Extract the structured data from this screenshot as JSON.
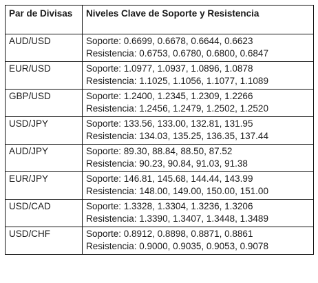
{
  "table": {
    "headers": {
      "pair": "Par de Divisas",
      "levels": "Niveles Clave de Soporte y Resistencia"
    },
    "rows": [
      {
        "pair": "AUD/USD",
        "support": "Soporte: 0.6699, 0.6678, 0.6644, 0.6623",
        "resistance": "Resistencia: 0.6753, 0.6780, 0.6800, 0.6847"
      },
      {
        "pair": "EUR/USD",
        "support": "Soporte: 1.0977, 1.0937, 1.0896, 1.0878",
        "resistance": "Resistencia: 1.1025, 1.1056, 1.1077, 1.1089"
      },
      {
        "pair": "GBP/USD",
        "support": "Soporte: 1.2400, 1.2345, 1.2309, 1.2266",
        "resistance": "Resistencia: 1.2456, 1.2479, 1.2502, 1.2520"
      },
      {
        "pair": "USD/JPY",
        "support": "Soporte: 133.56, 133.00, 132.81, 131.95",
        "resistance": "Resistencia: 134.03, 135.25, 136.35, 137.44"
      },
      {
        "pair": "AUD/JPY",
        "support": "Soporte: 89.30, 88.84, 88.50, 87.52",
        "resistance": "Resistencia: 90.23, 90.84, 91.03, 91.38"
      },
      {
        "pair": "EUR/JPY",
        "support": "Soporte: 146.81, 145.68, 144.44, 143.99",
        "resistance": "Resistencia: 148.00, 149.00, 150.00, 151.00"
      },
      {
        "pair": "USD/CAD",
        "support": "Soporte: 1.3328, 1.3304, 1.3236, 1.3206",
        "resistance": "Resistencia: 1.3390, 1.3407, 1.3448, 1.3489"
      },
      {
        "pair": "USD/CHF",
        "support": "Soporte: 0.8912, 0.8898, 0.8871, 0.8861",
        "resistance": "Resistencia: 0.9000, 0.9035, 0.9053, 0.9078"
      }
    ]
  },
  "colors": {
    "border": "#111111",
    "text": "#1a1a1a",
    "background": "#ffffff"
  }
}
